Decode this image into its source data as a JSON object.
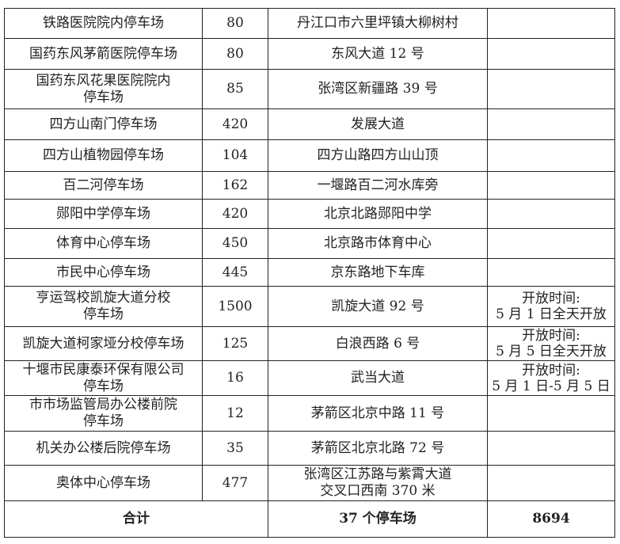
{
  "rows": [
    {
      "name": "铁路医院院内停车场",
      "spaces": "80",
      "address": "丹江口市六里坪镇大柳树村",
      "note": ""
    },
    {
      "name": "国药东风茅箭医院停车场",
      "spaces": "80",
      "address": "东风大道 12 号",
      "note": ""
    },
    {
      "name": "国药东风花果医院院内\n停车场",
      "spaces": "85",
      "address": "张湾区新疆路 39 号",
      "note": ""
    },
    {
      "name": "四方山南门停车场",
      "spaces": "420",
      "address": "发展大道",
      "note": ""
    },
    {
      "name": "四方山植物园停车场",
      "spaces": "104",
      "address": "四方山路四方山山顶",
      "note": ""
    },
    {
      "name": "百二河停车场",
      "spaces": "162",
      "address": "一堰路百二河水库旁",
      "note": ""
    },
    {
      "name": "郧阳中学停车场",
      "spaces": "420",
      "address": "北京北路郧阳中学",
      "note": ""
    },
    {
      "name": "体育中心停车场",
      "spaces": "450",
      "address": "北京路市体育中心",
      "note": ""
    },
    {
      "name": "市民中心停车场",
      "spaces": "445",
      "address": "京东路地下车库",
      "note": ""
    },
    {
      "name": "亨运驾校凯旋大道分校\n停车场",
      "spaces": "1500",
      "address": "凯旋大道 92 号",
      "note": "开放时间:\n5 月 1 日全天开放"
    },
    {
      "name": "凯旋大道柯家垭分校停车场",
      "spaces": "125",
      "address": "白浪西路 6 号",
      "note": "开放时间:\n5 月 5 日全天开放"
    },
    {
      "name": "十堰市民康泰环保有限公司\n停车场",
      "spaces": "16",
      "address": "武当大道",
      "note": "开放时间:\n5 月 1 日-5 月 5 日"
    },
    {
      "name": "市市场监管局办公楼前院\n停车场",
      "spaces": "12",
      "address": "茅箭区北京中路 11 号",
      "note": ""
    },
    {
      "name": "机关办公楼后院停车场",
      "spaces": "35",
      "address": "茅箭区北京北路 72 号",
      "note": ""
    },
    {
      "name": "奥体中心停车场",
      "spaces": "477",
      "address": "张湾区江苏路与紫霄大道\n交叉口西南 370 米",
      "note": ""
    }
  ],
  "total": {
    "label": "合计",
    "count": "37 个停车场",
    "spaces": "8694"
  }
}
